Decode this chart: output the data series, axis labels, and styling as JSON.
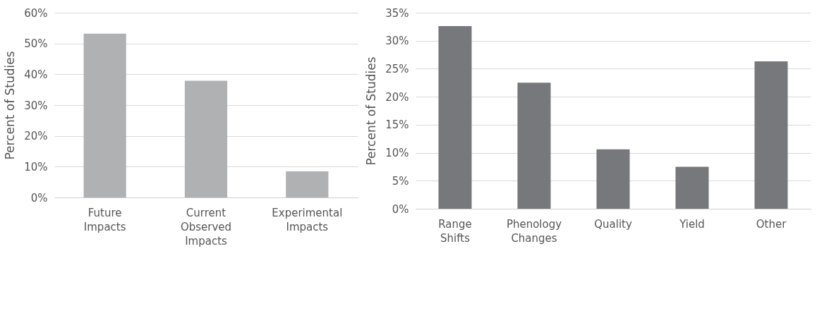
{
  "chart_data": [
    {
      "type": "bar",
      "ylabel": "Percent of Studies",
      "categories": [
        "Future Impacts",
        "Current Observed Impacts",
        "Experimental Impacts"
      ],
      "values": [
        53.2,
        37.9,
        8.5
      ],
      "color": "#b0b1b3",
      "ylim": [
        0,
        60
      ],
      "yticks": [
        {
          "value": 0,
          "label": "0%"
        },
        {
          "value": 10,
          "label": "10%"
        },
        {
          "value": 20,
          "label": "20%"
        },
        {
          "value": 30,
          "label": "30%"
        },
        {
          "value": 40,
          "label": "40%"
        },
        {
          "value": 50,
          "label": "50%"
        },
        {
          "value": 60,
          "label": "60%"
        }
      ],
      "grid": "y"
    },
    {
      "type": "bar",
      "ylabel": "Percent of Studies",
      "categories": [
        "Range Shifts",
        "Phenology Changes",
        "Quality",
        "Yield",
        "Other"
      ],
      "values": [
        32.6,
        22.5,
        10.6,
        7.5,
        26.3
      ],
      "color": "#77787b",
      "ylim": [
        0,
        35
      ],
      "yticks": [
        {
          "value": 0,
          "label": "0%"
        },
        {
          "value": 5,
          "label": "5%"
        },
        {
          "value": 10,
          "label": "10%"
        },
        {
          "value": 15,
          "label": "15%"
        },
        {
          "value": 20,
          "label": "20%"
        },
        {
          "value": 25,
          "label": "25%"
        },
        {
          "value": 30,
          "label": "30%"
        },
        {
          "value": 35,
          "label": "35%"
        }
      ],
      "grid": "y"
    }
  ]
}
